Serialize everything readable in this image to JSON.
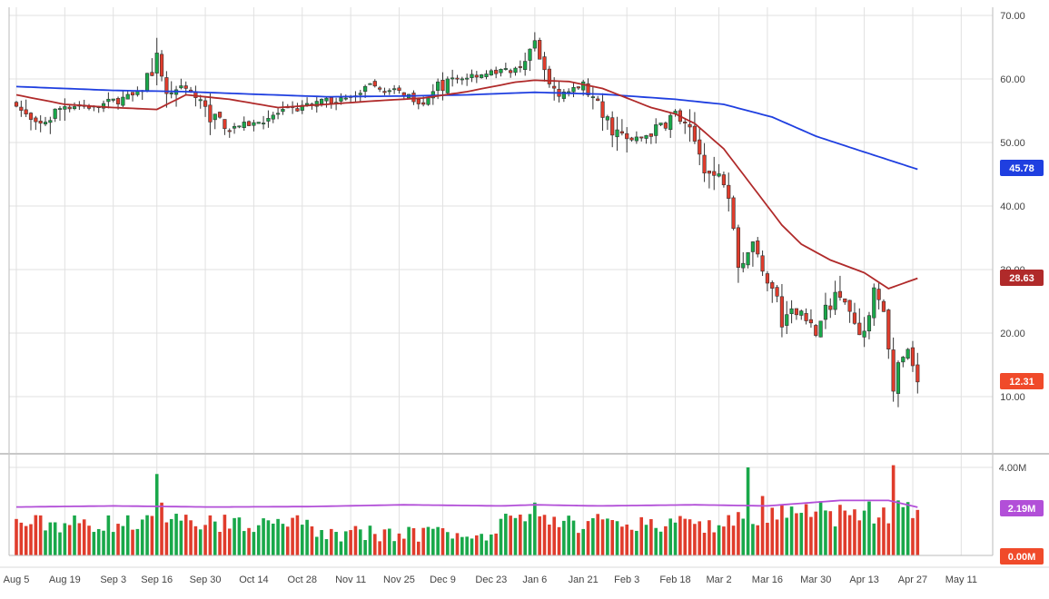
{
  "chart_data": {
    "type": "candlestick",
    "title": "",
    "colors": {
      "up": "#19a84a",
      "down": "#e03c2c",
      "ma_short": "#b02a2a",
      "ma_long": "#1f3fe0",
      "volume_ma": "#b24fd8",
      "grid": "#e1e1e1",
      "last_price_badge": "#f04a2a",
      "volume_badge": "#f04a2a",
      "volume_ma_badge": "#b24fd8"
    },
    "price_axis": {
      "range": [
        0,
        70
      ],
      "ticks": [
        "70.00",
        "60.00",
        "50.00",
        "40.00",
        "30.00",
        "20.00",
        "10.00"
      ],
      "tick_values": [
        70,
        60,
        50,
        40,
        30,
        20,
        10
      ]
    },
    "volume_axis": {
      "range": [
        0,
        4.3
      ],
      "ticks": [
        "4.00M"
      ],
      "tick_values": [
        4.0
      ]
    },
    "x_axis": {
      "labels": [
        "Aug 5",
        "Aug 19",
        "Sep 3",
        "Sep 16",
        "Sep 30",
        "Oct 14",
        "Oct 28",
        "Nov 11",
        "Nov 25",
        "Dec 9",
        "Dec 23",
        "Jan 6",
        "Jan 21",
        "Feb 3",
        "Feb 18",
        "Mar 2",
        "Mar 16",
        "Mar 30",
        "Apr 13",
        "Apr 27",
        "May 11"
      ],
      "label_index": [
        0,
        10,
        20,
        29,
        39,
        49,
        59,
        69,
        79,
        88,
        98,
        107,
        117,
        126,
        136,
        145,
        155,
        165,
        175,
        185,
        195
      ],
      "x_range": [
        0,
        200
      ]
    },
    "badges": {
      "ma_long_last": "45.78",
      "ma_short_last": "28.63",
      "last_price": "12.31",
      "volume_ma_last": "2.19M",
      "volume_zero": "0.00M"
    },
    "series": {
      "close_anchors": [
        [
          0,
          56.0
        ],
        [
          4,
          52.0
        ],
        [
          10,
          56.0
        ],
        [
          16,
          55.5
        ],
        [
          20,
          56.5
        ],
        [
          25,
          57.5
        ],
        [
          29,
          63.0
        ],
        [
          31,
          58.0
        ],
        [
          35,
          59.0
        ],
        [
          39,
          55.0
        ],
        [
          44,
          52.5
        ],
        [
          49,
          53.0
        ],
        [
          54,
          54.5
        ],
        [
          59,
          55.5
        ],
        [
          64,
          56.5
        ],
        [
          69,
          57.0
        ],
        [
          73,
          58.5
        ],
        [
          79,
          58.0
        ],
        [
          84,
          56.5
        ],
        [
          88,
          59.0
        ],
        [
          93,
          60.5
        ],
        [
          98,
          61.0
        ],
        [
          103,
          61.5
        ],
        [
          107,
          65.0
        ],
        [
          110,
          59.0
        ],
        [
          114,
          58.0
        ],
        [
          117,
          59.0
        ],
        [
          121,
          54.0
        ],
        [
          126,
          50.0
        ],
        [
          131,
          51.5
        ],
        [
          136,
          54.5
        ],
        [
          140,
          50.0
        ],
        [
          143,
          45.0
        ],
        [
          146,
          44.0
        ],
        [
          147,
          41.5
        ],
        [
          149,
          31.0
        ],
        [
          152,
          34.0
        ],
        [
          156,
          27.0
        ],
        [
          158,
          22.0
        ],
        [
          162,
          23.5
        ],
        [
          165,
          20.0
        ],
        [
          168,
          25.0
        ],
        [
          170,
          27.0
        ],
        [
          173,
          22.0
        ],
        [
          175,
          20.0
        ],
        [
          177,
          26.0
        ],
        [
          179,
          24.0
        ],
        [
          180,
          17.0
        ],
        [
          181,
          11.0
        ],
        [
          182,
          14.0
        ],
        [
          184,
          17.0
        ],
        [
          186,
          12.31
        ]
      ],
      "ma_short": [
        [
          0,
          57.5
        ],
        [
          10,
          56.0
        ],
        [
          20,
          55.5
        ],
        [
          29,
          55.2
        ],
        [
          35,
          57.5
        ],
        [
          44,
          56.8
        ],
        [
          54,
          55.5
        ],
        [
          64,
          56.0
        ],
        [
          73,
          56.5
        ],
        [
          84,
          57.0
        ],
        [
          93,
          58.0
        ],
        [
          103,
          59.5
        ],
        [
          107,
          59.8
        ],
        [
          114,
          59.6
        ],
        [
          121,
          58.5
        ],
        [
          126,
          57.0
        ],
        [
          131,
          55.5
        ],
        [
          136,
          54.5
        ],
        [
          140,
          53.0
        ],
        [
          146,
          49.0
        ],
        [
          152,
          43.0
        ],
        [
          158,
          37.0
        ],
        [
          162,
          34.0
        ],
        [
          168,
          31.5
        ],
        [
          175,
          29.5
        ],
        [
          180,
          27.0
        ],
        [
          186,
          28.63
        ]
      ],
      "ma_long": [
        [
          0,
          58.8
        ],
        [
          20,
          58.2
        ],
        [
          35,
          58.0
        ],
        [
          49,
          57.6
        ],
        [
          64,
          57.2
        ],
        [
          79,
          57.3
        ],
        [
          93,
          57.5
        ],
        [
          107,
          57.9
        ],
        [
          121,
          57.6
        ],
        [
          136,
          56.8
        ],
        [
          146,
          56.0
        ],
        [
          156,
          54.0
        ],
        [
          165,
          51.0
        ],
        [
          175,
          48.5
        ],
        [
          186,
          45.78
        ]
      ],
      "volume_ma": [
        [
          0,
          2.2
        ],
        [
          20,
          2.25
        ],
        [
          40,
          2.2
        ],
        [
          60,
          2.22
        ],
        [
          80,
          2.3
        ],
        [
          100,
          2.25
        ],
        [
          107,
          2.3
        ],
        [
          120,
          2.25
        ],
        [
          140,
          2.3
        ],
        [
          155,
          2.25
        ],
        [
          170,
          2.5
        ],
        [
          180,
          2.5
        ],
        [
          186,
          2.19
        ]
      ],
      "volume_spikes": [
        [
          29,
          3.7
        ],
        [
          30,
          2.4
        ],
        [
          107,
          2.4
        ],
        [
          151,
          4.0
        ],
        [
          154,
          2.7
        ],
        [
          158,
          2.3
        ],
        [
          170,
          2.3
        ],
        [
          181,
          4.1
        ],
        [
          182,
          2.5
        ]
      ]
    }
  }
}
